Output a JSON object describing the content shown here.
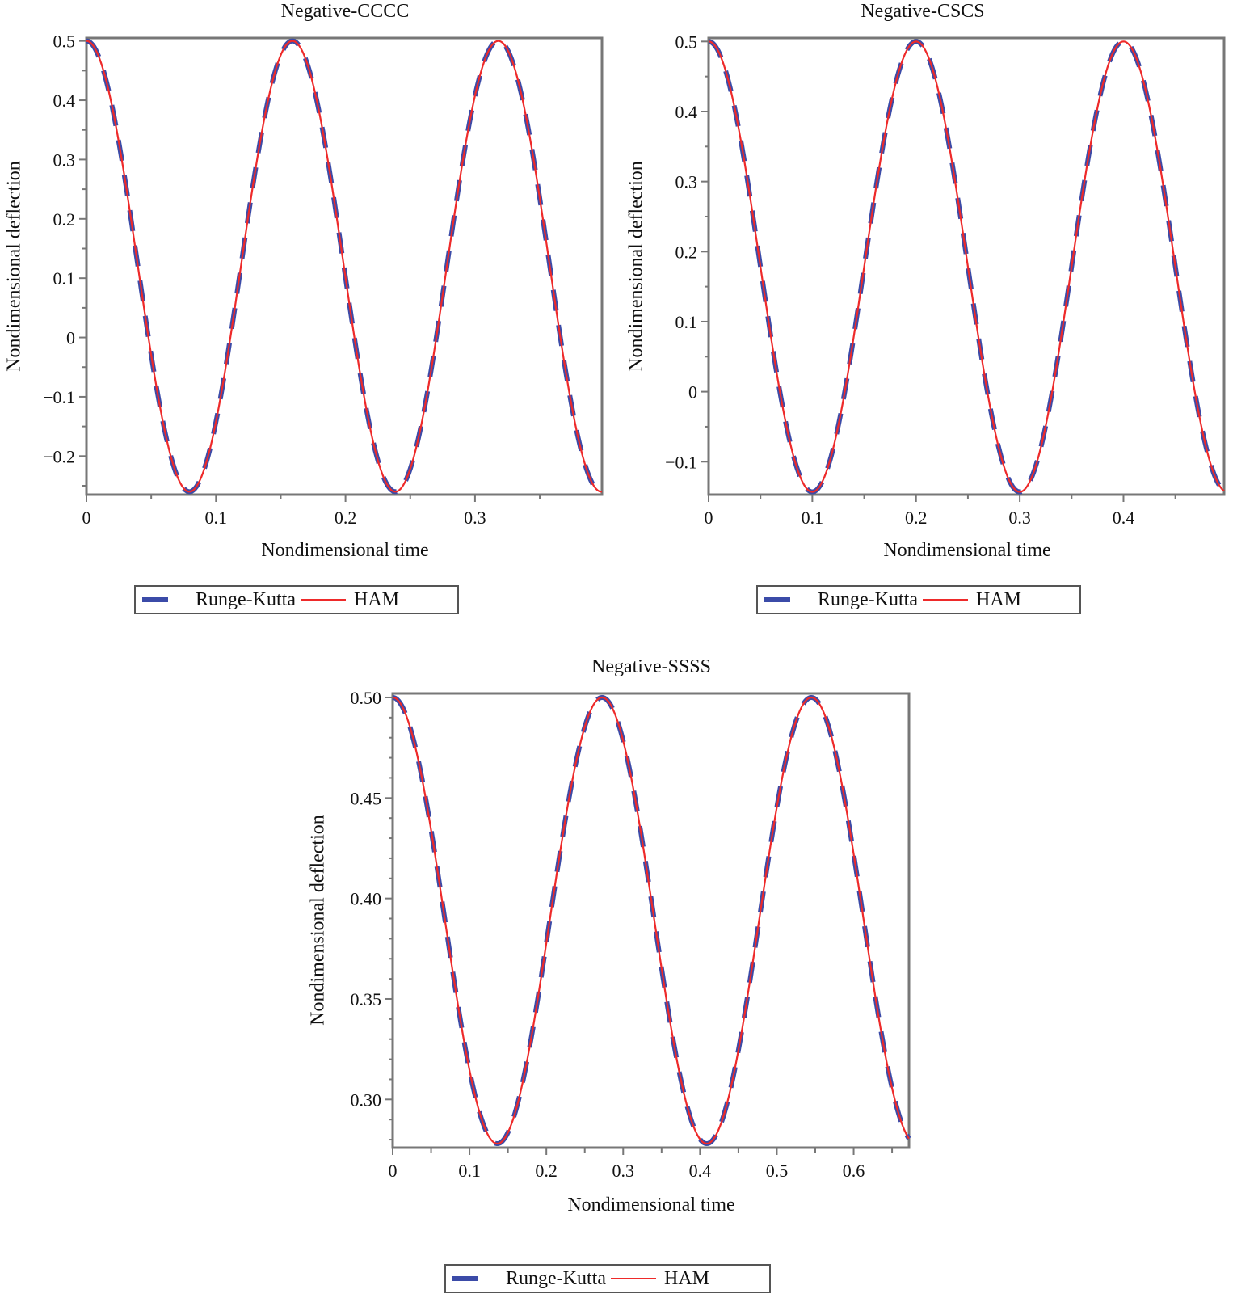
{
  "colors": {
    "runge_kutta": "#3b4ba8",
    "ham": "#ee2a2a",
    "axis": "#777777"
  },
  "legend": {
    "items": [
      {
        "label": "Runge-Kutta",
        "style": "dashed",
        "color": "#3b4ba8"
      },
      {
        "label": "HAM",
        "style": "solid",
        "color": "#ee2a2a"
      }
    ]
  },
  "panels": [
    {
      "title": "Negative-CCCC",
      "xlabel": "Nondimensional time",
      "ylabel": "Nondimensional deflection",
      "legend_rk": "Runge-Kutta",
      "legend_ham": "HAM"
    },
    {
      "title": "Negative-CSCS",
      "xlabel": "Nondimensional time",
      "ylabel": "Nondimensional deflection",
      "legend_rk": "Runge-Kutta",
      "legend_ham": "HAM"
    },
    {
      "title": "Negative-SSSS",
      "xlabel": "Nondimensional time",
      "ylabel": "Nondimensional deflection",
      "legend_rk": "Runge-Kutta",
      "legend_ham": "HAM"
    }
  ],
  "chart_data": [
    {
      "type": "line",
      "title": "Negative-CCCC",
      "xlabel": "Nondimensional time",
      "ylabel": "Nondimensional deflection",
      "xlim": [
        0,
        0.398
      ],
      "ylim": [
        -0.265,
        0.505
      ],
      "xticks": [
        0,
        0.1,
        0.2,
        0.3
      ],
      "xtick_labels": [
        "0",
        "0.1",
        "0.2",
        "0.3"
      ],
      "yticks": [
        -0.2,
        -0.1,
        0,
        0.1,
        0.2,
        0.3,
        0.4,
        0.5
      ],
      "ytick_labels": [
        "−0.2",
        "−0.1",
        "0",
        "0.1",
        "0.2",
        "0.3",
        "0.4",
        "0.5"
      ],
      "grid": false,
      "legend_position": "bottom",
      "model": {
        "max": 0.5,
        "min": -0.26,
        "period": 0.159
      },
      "series": [
        {
          "name": "Runge-Kutta",
          "style": "dashed",
          "x": [
            0,
            0.04,
            0.0795,
            0.119,
            0.159,
            0.199,
            0.2385,
            0.278,
            0.318,
            0.358,
            0.398
          ],
          "values": [
            0.5,
            0.12,
            -0.26,
            0.12,
            0.5,
            0.12,
            -0.26,
            0.12,
            0.5,
            0.12,
            -0.26
          ]
        },
        {
          "name": "HAM",
          "style": "solid",
          "x": [
            0,
            0.04,
            0.0795,
            0.119,
            0.159,
            0.199,
            0.2385,
            0.278,
            0.318,
            0.358,
            0.398
          ],
          "values": [
            0.5,
            0.12,
            -0.26,
            0.12,
            0.5,
            0.12,
            -0.26,
            0.12,
            0.5,
            0.12,
            -0.26
          ]
        }
      ]
    },
    {
      "type": "line",
      "title": "Negative-CSCS",
      "xlabel": "Nondimensional time",
      "ylabel": "Nondimensional deflection",
      "xlim": [
        0,
        0.497
      ],
      "ylim": [
        -0.147,
        0.505
      ],
      "xticks": [
        0,
        0.1,
        0.2,
        0.3,
        0.4
      ],
      "xtick_labels": [
        "0",
        "0.1",
        "0.2",
        "0.3",
        "0.4"
      ],
      "yticks": [
        -0.1,
        0,
        0.1,
        0.2,
        0.3,
        0.4,
        0.5
      ],
      "ytick_labels": [
        "−0.1",
        "0",
        "0.1",
        "0.2",
        "0.3",
        "0.4",
        "0.5"
      ],
      "grid": false,
      "legend_position": "bottom",
      "model": {
        "max": 0.5,
        "min": -0.143,
        "period": 0.2
      },
      "series": [
        {
          "name": "Runge-Kutta",
          "style": "dashed",
          "x": [
            0,
            0.05,
            0.1,
            0.15,
            0.2,
            0.25,
            0.3,
            0.35,
            0.4,
            0.45,
            0.497
          ],
          "values": [
            0.5,
            0.18,
            -0.143,
            0.18,
            0.5,
            0.18,
            -0.143,
            0.18,
            0.5,
            0.18,
            -0.14
          ]
        },
        {
          "name": "HAM",
          "style": "solid",
          "x": [
            0,
            0.05,
            0.1,
            0.15,
            0.2,
            0.25,
            0.3,
            0.35,
            0.4,
            0.45,
            0.497
          ],
          "values": [
            0.5,
            0.18,
            -0.143,
            0.18,
            0.5,
            0.18,
            -0.143,
            0.18,
            0.5,
            0.18,
            -0.14
          ]
        }
      ]
    },
    {
      "type": "line",
      "title": "Negative-SSSS",
      "xlabel": "Nondimensional time",
      "ylabel": "Nondimensional deflection",
      "xlim": [
        0,
        0.672
      ],
      "ylim": [
        0.276,
        0.502
      ],
      "xticks": [
        0,
        0.1,
        0.2,
        0.3,
        0.4,
        0.5,
        0.6
      ],
      "xtick_labels": [
        "0",
        "0.1",
        "0.2",
        "0.3",
        "0.4",
        "0.5",
        "0.6"
      ],
      "yticks": [
        0.3,
        0.35,
        0.4,
        0.45,
        0.5
      ],
      "ytick_labels": [
        "0.30",
        "0.35",
        "0.40",
        "0.45",
        "0.50"
      ],
      "grid": false,
      "legend_position": "bottom",
      "model": {
        "max": 0.5,
        "min": 0.278,
        "period": 0.2725
      },
      "series": [
        {
          "name": "Runge-Kutta",
          "style": "dashed",
          "x": [
            0,
            0.068,
            0.136,
            0.204,
            0.2725,
            0.341,
            0.409,
            0.477,
            0.545,
            0.613,
            0.672
          ],
          "values": [
            0.5,
            0.389,
            0.278,
            0.389,
            0.5,
            0.389,
            0.278,
            0.389,
            0.5,
            0.389,
            0.279
          ]
        },
        {
          "name": "HAM",
          "style": "solid",
          "x": [
            0,
            0.068,
            0.136,
            0.204,
            0.2725,
            0.341,
            0.409,
            0.477,
            0.545,
            0.613,
            0.672
          ],
          "values": [
            0.5,
            0.389,
            0.278,
            0.389,
            0.5,
            0.389,
            0.278,
            0.389,
            0.5,
            0.389,
            0.279
          ]
        }
      ]
    }
  ]
}
